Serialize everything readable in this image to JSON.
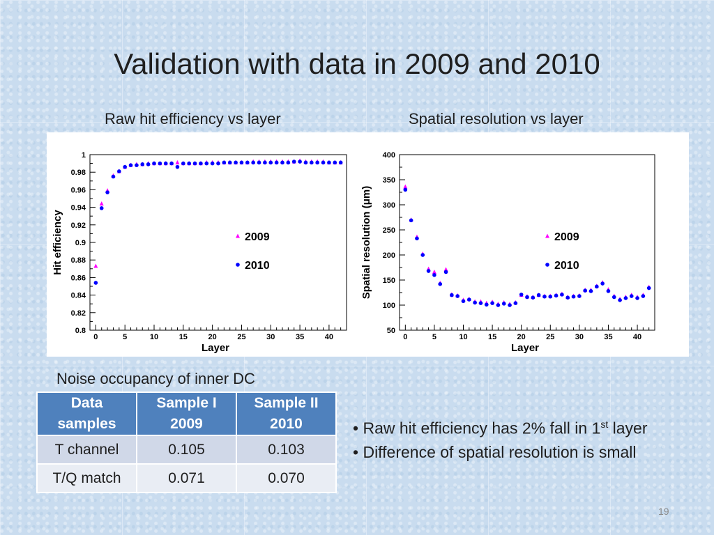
{
  "slide": {
    "title": "Validation with data in 2009 and 2010",
    "subtitle_left": "Raw hit efficiency vs layer",
    "subtitle_right": "Spatial resolution vs layer",
    "page_number": "19"
  },
  "colors": {
    "series_2009": "#ff00ff",
    "series_2010": "#0000ff",
    "table_header": "#4f81bd"
  },
  "chart_data": [
    {
      "type": "scatter",
      "title": "Raw hit efficiency vs layer",
      "xlabel": "Layer",
      "ylabel": "Hit efficiency",
      "xlim": [
        -1,
        43
      ],
      "ylim": [
        0.8,
        1.0
      ],
      "xticks": [
        0,
        5,
        10,
        15,
        20,
        25,
        30,
        35,
        40
      ],
      "yticks": [
        0.8,
        0.82,
        0.84,
        0.86,
        0.88,
        0.9,
        0.92,
        0.94,
        0.96,
        0.98,
        1
      ],
      "ytick_labels": [
        "0.8",
        "0.82",
        "0.84",
        "0.86",
        "0.88",
        "0.9",
        "0.92",
        "0.94",
        "0.96",
        "0.98",
        "1"
      ],
      "legend": [
        "2009",
        "2010"
      ],
      "legend_position": "center-right",
      "series": [
        {
          "name": "2009",
          "marker": "triangle",
          "x": [
            0,
            1,
            2,
            3,
            4,
            5,
            6,
            7,
            8,
            9,
            10,
            11,
            12,
            13,
            14,
            15,
            16,
            17,
            18,
            19,
            20,
            21,
            22,
            23,
            24,
            25,
            26,
            27,
            28,
            29,
            30,
            31,
            32,
            33,
            34,
            35,
            36,
            37,
            38,
            39,
            40,
            41,
            42
          ],
          "y": [
            0.873,
            0.944,
            0.959,
            0.976,
            0.981,
            0.986,
            0.988,
            0.989,
            0.989,
            0.99,
            0.99,
            0.99,
            0.99,
            0.99,
            0.991,
            0.99,
            0.99,
            0.99,
            0.99,
            0.991,
            0.991,
            0.991,
            0.991,
            0.991,
            0.991,
            0.991,
            0.991,
            0.992,
            0.992,
            0.992,
            0.992,
            0.992,
            0.992,
            0.992,
            0.992,
            0.993,
            0.992,
            0.992,
            0.992,
            0.992,
            0.991,
            0.991,
            0.991
          ]
        },
        {
          "name": "2010",
          "marker": "circle",
          "x": [
            0,
            1,
            2,
            3,
            4,
            5,
            6,
            7,
            8,
            9,
            10,
            11,
            12,
            13,
            14,
            15,
            16,
            17,
            18,
            19,
            20,
            21,
            22,
            23,
            24,
            25,
            26,
            27,
            28,
            29,
            30,
            31,
            32,
            33,
            34,
            35,
            36,
            37,
            38,
            39,
            40,
            41,
            42
          ],
          "y": [
            0.854,
            0.939,
            0.957,
            0.975,
            0.981,
            0.986,
            0.988,
            0.988,
            0.989,
            0.989,
            0.99,
            0.99,
            0.99,
            0.99,
            0.986,
            0.99,
            0.99,
            0.99,
            0.99,
            0.99,
            0.99,
            0.99,
            0.991,
            0.991,
            0.991,
            0.991,
            0.991,
            0.991,
            0.991,
            0.991,
            0.991,
            0.991,
            0.991,
            0.991,
            0.992,
            0.992,
            0.991,
            0.991,
            0.991,
            0.991,
            0.991,
            0.991,
            0.991
          ]
        }
      ]
    },
    {
      "type": "scatter",
      "title": "Spatial resolution vs layer",
      "xlabel": "Layer",
      "ylabel": "Spatial resolution (μm)",
      "xlim": [
        -1,
        43
      ],
      "ylim": [
        50,
        400
      ],
      "xticks": [
        0,
        5,
        10,
        15,
        20,
        25,
        30,
        35,
        40
      ],
      "yticks": [
        50,
        100,
        150,
        200,
        250,
        300,
        350,
        400
      ],
      "ytick_labels": [
        "50",
        "100",
        "150",
        "200",
        "250",
        "300",
        "350",
        "400"
      ],
      "legend": [
        "2009",
        "2010"
      ],
      "legend_position": "center-right",
      "series": [
        {
          "name": "2009",
          "marker": "triangle",
          "x": [
            0,
            1,
            2,
            3,
            4,
            5,
            6,
            7,
            8,
            9,
            10,
            11,
            12,
            13,
            14,
            15,
            16,
            17,
            18,
            19,
            20,
            21,
            22,
            23,
            24,
            25,
            26,
            27,
            28,
            29,
            30,
            31,
            32,
            33,
            34,
            35,
            36,
            37,
            38,
            39,
            40,
            41,
            42
          ],
          "y": [
            336,
            270,
            236,
            202,
            172,
            166,
            144,
            171,
            121,
            119,
            110,
            112,
            107,
            107,
            104,
            106,
            102,
            105,
            102,
            105,
            120,
            117,
            116,
            120,
            118,
            118,
            120,
            122,
            116,
            118,
            119,
            130,
            130,
            138,
            145,
            131,
            118,
            112,
            116,
            120,
            116,
            120,
            136
          ],
          "y_note": "values read off the scatter markers"
        },
        {
          "name": "2010",
          "marker": "circle",
          "x": [
            0,
            1,
            2,
            3,
            4,
            5,
            6,
            7,
            8,
            9,
            10,
            11,
            12,
            13,
            14,
            15,
            16,
            17,
            18,
            19,
            20,
            21,
            22,
            23,
            24,
            25,
            26,
            27,
            28,
            29,
            30,
            31,
            32,
            33,
            34,
            35,
            36,
            37,
            38,
            39,
            40,
            41,
            42
          ],
          "y": [
            330,
            269,
            233,
            200,
            168,
            160,
            142,
            166,
            120,
            118,
            108,
            111,
            105,
            104,
            101,
            104,
            100,
            103,
            100,
            104,
            121,
            116,
            115,
            120,
            117,
            117,
            119,
            121,
            115,
            117,
            118,
            129,
            128,
            137,
            143,
            128,
            116,
            110,
            114,
            118,
            114,
            118,
            134
          ]
        }
      ]
    }
  ],
  "noise": {
    "title": "Noise occupancy of inner DC",
    "headers": [
      {
        "line1": "Data",
        "line2": "samples"
      },
      {
        "line1": "Sample I",
        "line2": "2009"
      },
      {
        "line1": "Sample II",
        "line2": "2010"
      }
    ],
    "rows": [
      [
        "T channel",
        "0.105",
        "0.103"
      ],
      [
        "T/Q match",
        "0.071",
        "0.070"
      ]
    ]
  },
  "bullets": {
    "b1_before": "Raw hit efficiency has 2% fall in 1",
    "b1_sup": "st",
    "b1_after": " layer",
    "b2": "Difference of spatial resolution is small",
    "marker": "•"
  }
}
